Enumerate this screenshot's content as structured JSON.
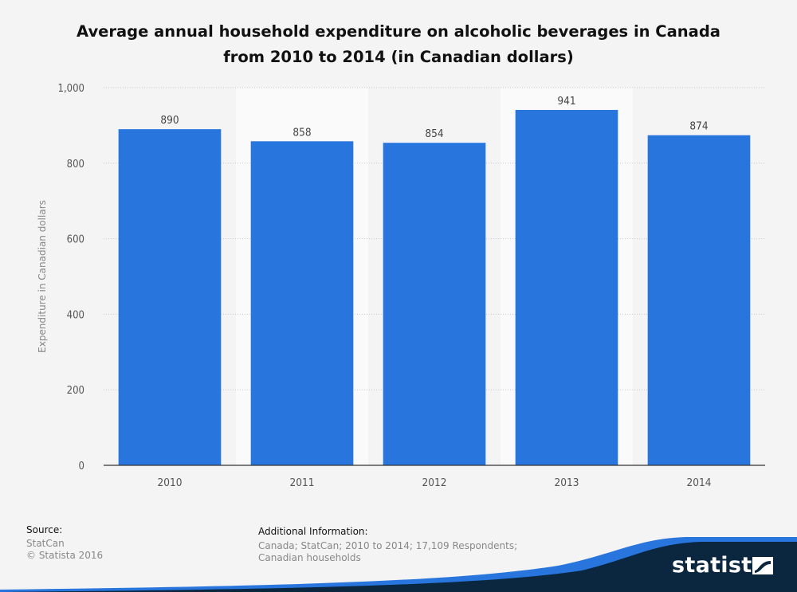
{
  "chart_data": {
    "type": "bar",
    "title_lines": [
      "Average annual household expenditure on alcoholic beverages in Canada",
      "from 2010 to 2014 (in Canadian dollars)"
    ],
    "categories": [
      "2010",
      "2011",
      "2012",
      "2013",
      "2014"
    ],
    "values": [
      890,
      858,
      854,
      941,
      874
    ],
    "data_labels": [
      "890",
      "858",
      "854",
      "941",
      "874"
    ],
    "ylabel": "Expenditure in Canadian dollars",
    "xlabel": "",
    "ylim": [
      0,
      1000
    ],
    "yticks": [
      0,
      200,
      400,
      600,
      800,
      1000
    ],
    "ytick_labels": [
      "0",
      "200",
      "400",
      "600",
      "800",
      "1,000"
    ],
    "grid": true,
    "bar_color": "#2876dd"
  },
  "footer": {
    "source_heading": "Source:",
    "source_lines": [
      "StatCan",
      "© Statista 2016"
    ],
    "additional_heading": "Additional Information:",
    "additional_text": "Canada; StatCan; 2010 to 2014; 17,109 Respondents; Canadian households"
  },
  "brand": {
    "name": "statista",
    "color": "#0b2740"
  }
}
